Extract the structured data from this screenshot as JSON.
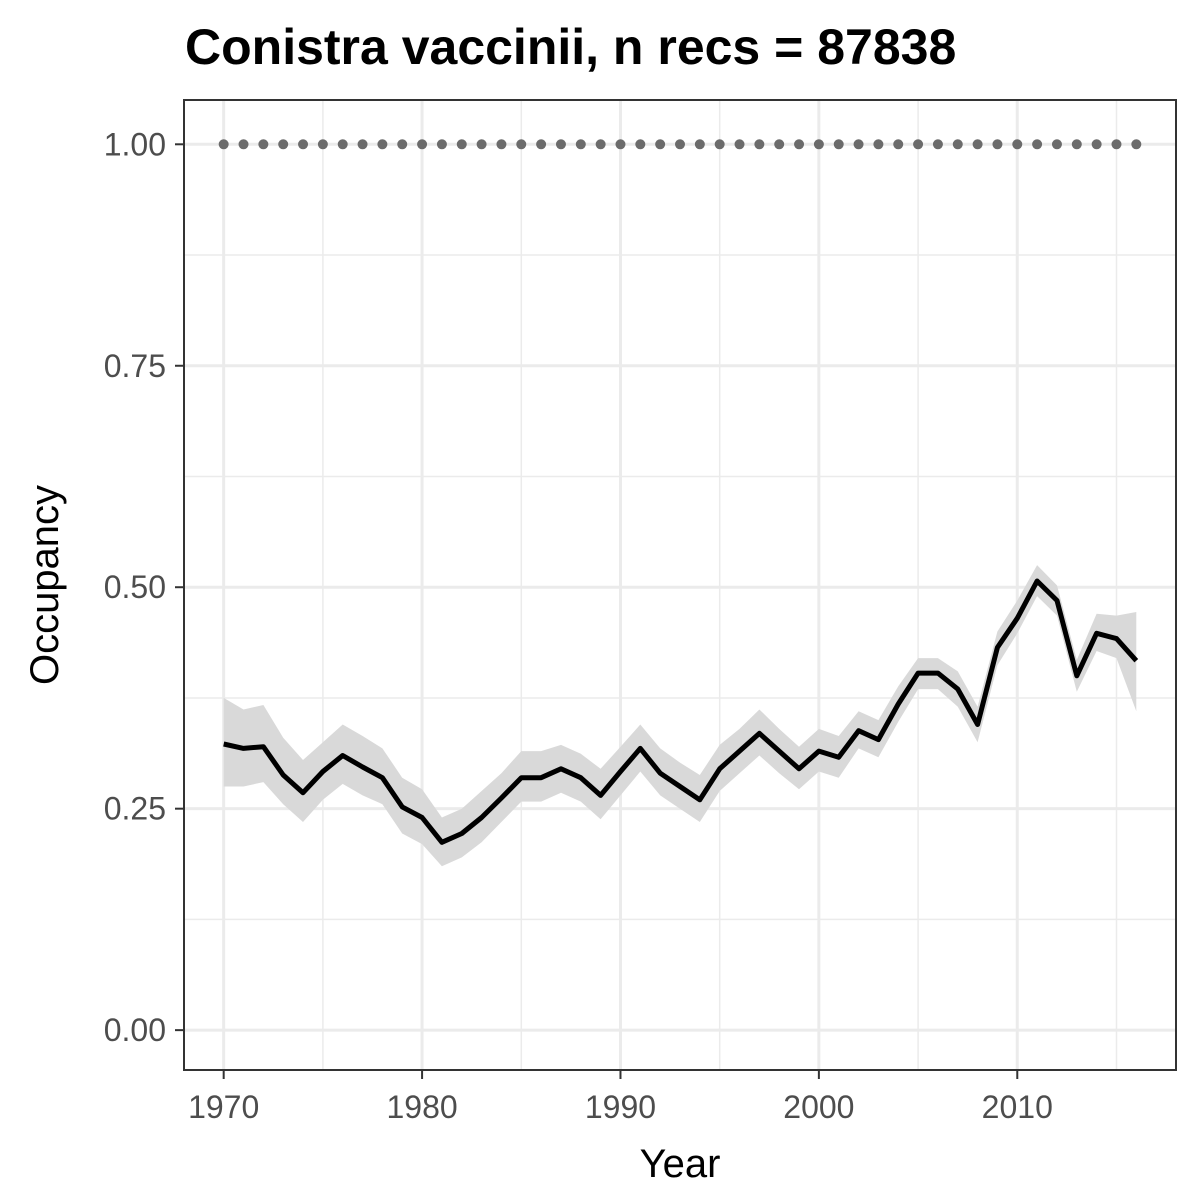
{
  "chart_data": {
    "type": "line",
    "title": "Conistra vaccinii, n recs = 87838",
    "xlabel": "Year",
    "ylabel": "Occupancy",
    "xlim": [
      1968,
      2018
    ],
    "ylim": [
      -0.045,
      1.05
    ],
    "x_ticks": [
      1970,
      1980,
      1990,
      2000,
      2010
    ],
    "x_tick_labels": [
      "1970",
      "1980",
      "1990",
      "2000",
      "2010"
    ],
    "y_ticks": [
      0,
      0.25,
      0.5,
      0.75,
      1
    ],
    "y_tick_labels": [
      "0.00",
      "0.25",
      "0.50",
      "0.75",
      "1.00"
    ],
    "grid": true,
    "legend": "none",
    "colors": {
      "line": "#000000",
      "ribbon": "#d9d9d9",
      "dots": "#6b6b6b",
      "grid": "#ebebeb",
      "panel_border": "#333333"
    },
    "series": [
      {
        "x": [
          1970,
          1971,
          1972,
          1973,
          1974,
          1975,
          1976,
          1977,
          1978,
          1979,
          1980,
          1981,
          1982,
          1983,
          1984,
          1985,
          1986,
          1987,
          1988,
          1989,
          1990,
          1991,
          1992,
          1993,
          1994,
          1995,
          1996,
          1997,
          1998,
          1999,
          2000,
          2001,
          2002,
          2003,
          2004,
          2005,
          2006,
          2007,
          2008,
          2009,
          2010,
          2011,
          2012,
          2013,
          2014,
          2015,
          2016
        ],
        "y": [
          0.323,
          0.318,
          0.32,
          0.288,
          0.268,
          0.292,
          0.31,
          0.297,
          0.285,
          0.252,
          0.24,
          0.212,
          0.222,
          0.24,
          0.262,
          0.285,
          0.285,
          0.295,
          0.285,
          0.265,
          0.292,
          0.318,
          0.29,
          0.275,
          0.26,
          0.295,
          0.315,
          0.335,
          0.315,
          0.295,
          0.315,
          0.308,
          0.338,
          0.328,
          0.368,
          0.403,
          0.403,
          0.385,
          0.345,
          0.432,
          0.465,
          0.507,
          0.485,
          0.4,
          0.448,
          0.442,
          0.417
        ],
        "lower": [
          0.275,
          0.275,
          0.28,
          0.255,
          0.235,
          0.26,
          0.278,
          0.265,
          0.255,
          0.222,
          0.21,
          0.185,
          0.195,
          0.212,
          0.235,
          0.258,
          0.258,
          0.268,
          0.258,
          0.238,
          0.265,
          0.292,
          0.265,
          0.25,
          0.235,
          0.27,
          0.29,
          0.31,
          0.29,
          0.272,
          0.292,
          0.285,
          0.318,
          0.308,
          0.348,
          0.385,
          0.385,
          0.365,
          0.325,
          0.412,
          0.448,
          0.49,
          0.468,
          0.382,
          0.428,
          0.42,
          0.36
        ],
        "upper": [
          0.375,
          0.362,
          0.367,
          0.33,
          0.305,
          0.325,
          0.345,
          0.332,
          0.318,
          0.285,
          0.272,
          0.24,
          0.25,
          0.27,
          0.29,
          0.315,
          0.315,
          0.322,
          0.312,
          0.295,
          0.32,
          0.345,
          0.318,
          0.302,
          0.288,
          0.322,
          0.34,
          0.362,
          0.34,
          0.32,
          0.34,
          0.332,
          0.36,
          0.35,
          0.388,
          0.42,
          0.42,
          0.405,
          0.365,
          0.45,
          0.485,
          0.525,
          0.502,
          0.418,
          0.47,
          0.468,
          0.472
        ]
      },
      {
        "x": [
          1970,
          1971,
          1972,
          1973,
          1974,
          1975,
          1976,
          1977,
          1978,
          1979,
          1980,
          1981,
          1982,
          1983,
          1984,
          1985,
          1986,
          1987,
          1988,
          1989,
          1990,
          1991,
          1992,
          1993,
          1994,
          1995,
          1996,
          1997,
          1998,
          1999,
          2000,
          2001,
          2002,
          2003,
          2004,
          2005,
          2006,
          2007,
          2008,
          2009,
          2010,
          2011,
          2012,
          2013,
          2014,
          2015,
          2016
        ],
        "y": [
          1,
          1,
          1,
          1,
          1,
          1,
          1,
          1,
          1,
          1,
          1,
          1,
          1,
          1,
          1,
          1,
          1,
          1,
          1,
          1,
          1,
          1,
          1,
          1,
          1,
          1,
          1,
          1,
          1,
          1,
          1,
          1,
          1,
          1,
          1,
          1,
          1,
          1,
          1,
          1,
          1,
          1,
          1,
          1,
          1,
          1,
          1
        ]
      }
    ]
  }
}
